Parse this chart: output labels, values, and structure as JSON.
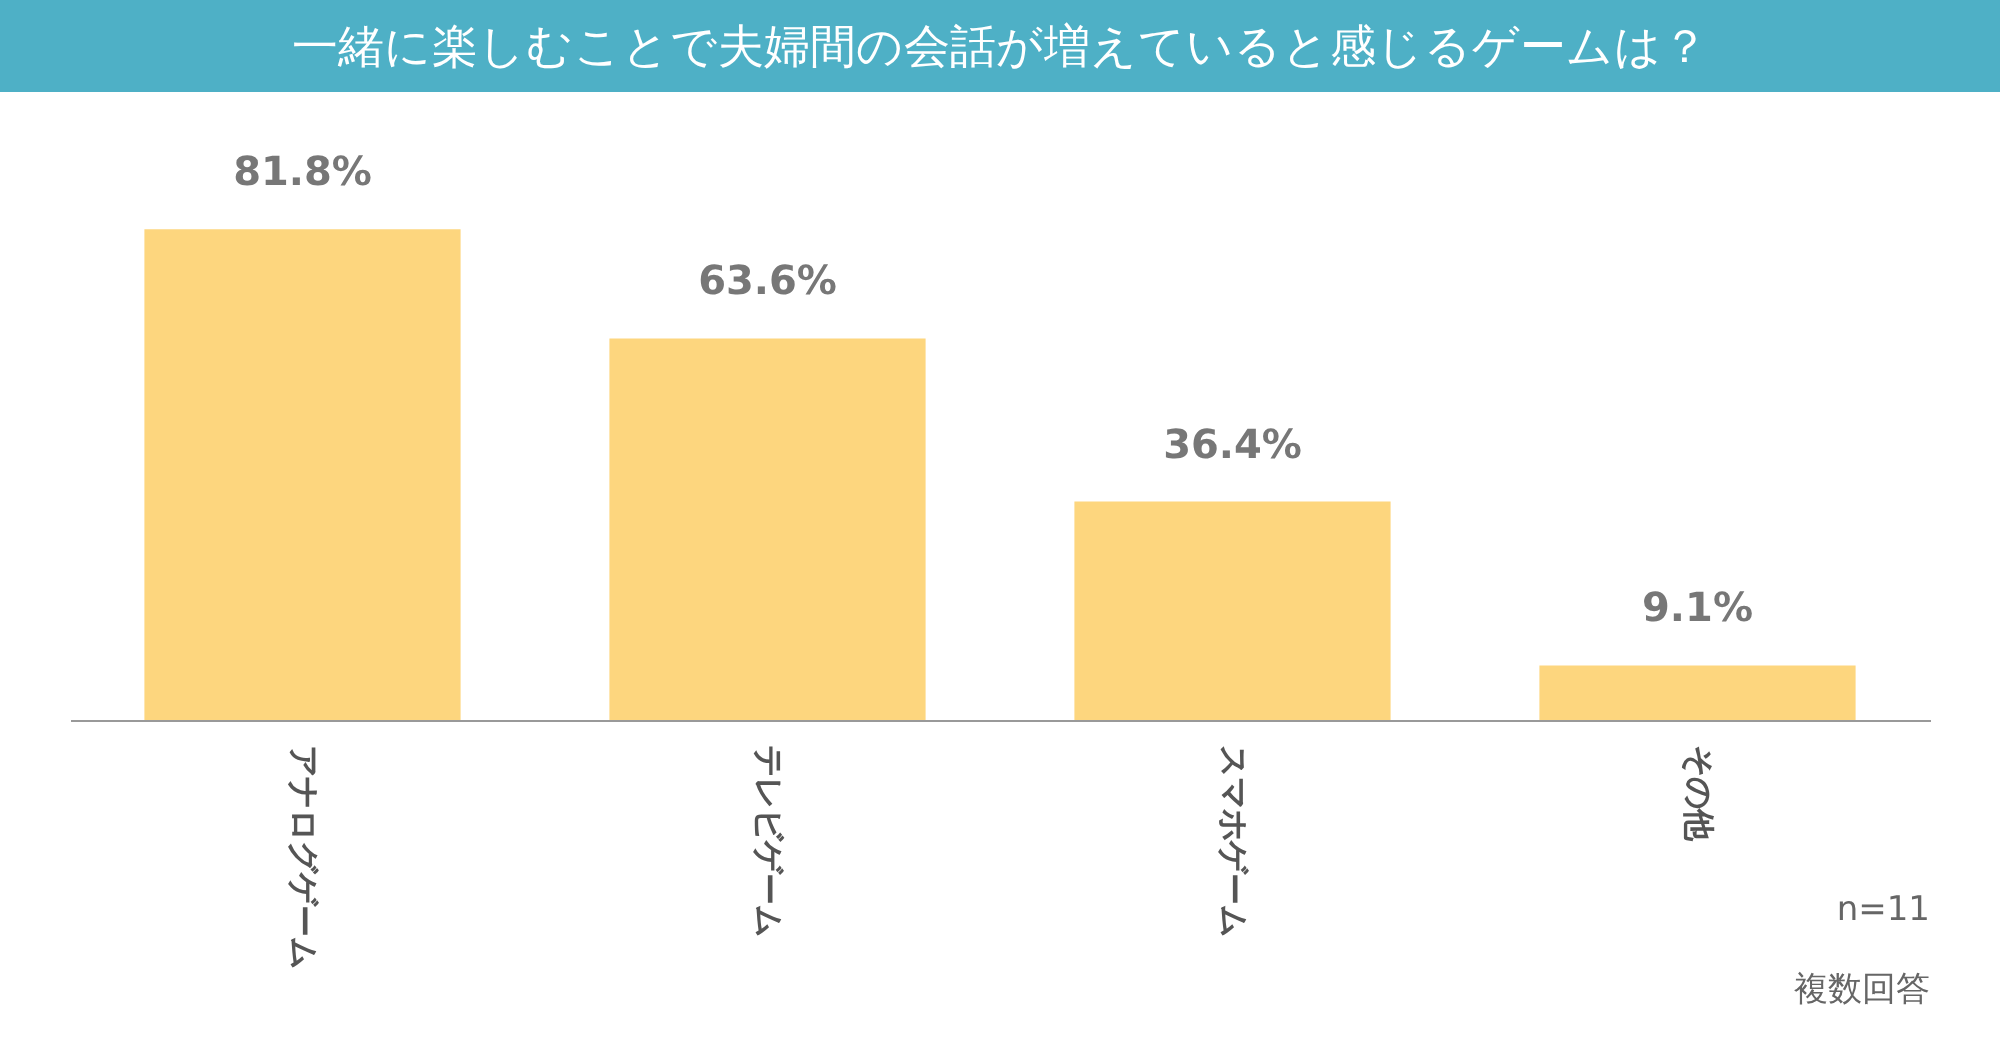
{
  "chart_data": {
    "type": "bar",
    "title": "一緒に楽しむことで夫婦間の会話が増えていると感じるゲームは？",
    "categories": [
      "アナログゲーム",
      "テレビゲーム",
      "スマホゲーム",
      "その他"
    ],
    "values": [
      81.8,
      63.6,
      36.4,
      9.1
    ],
    "value_labels": [
      "81.8%",
      "63.6%",
      "36.4%",
      "9.1%"
    ],
    "color": "#fdd67e",
    "grid": false,
    "annotations": [
      "n=11",
      "複数回答"
    ]
  }
}
